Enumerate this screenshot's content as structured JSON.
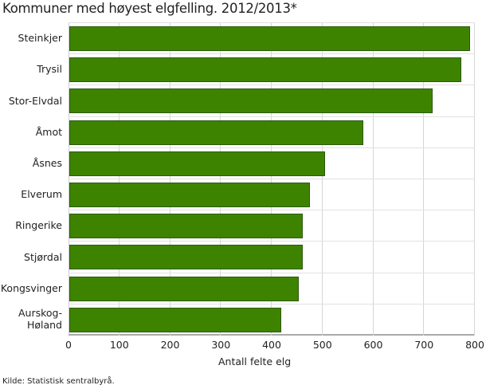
{
  "title": "Kommuner med høyest elgfelling. 2012/2013*",
  "source": "Kilde: Statistisk sentralbyrå.",
  "colors": {
    "bar": "#3d8300",
    "bar_border": "#2c5a10",
    "grid": "#d6d6d6"
  },
  "chart_data": {
    "type": "bar",
    "orientation": "horizontal",
    "title": "Kommuner med høyest elgfelling. 2012/2013*",
    "xlabel": "Antall felte elg",
    "ylabel": "",
    "categories": [
      "Steinkjer",
      "Trysil",
      "Stor-Elvdal",
      "Åmot",
      "Åsnes",
      "Elverum",
      "Ringerike",
      "Stjørdal",
      "Kongsvinger",
      "Aurskog-Høland"
    ],
    "values": [
      789,
      771,
      715,
      579,
      503,
      474,
      460,
      459,
      452,
      417
    ],
    "xlim": [
      0,
      800
    ],
    "xticks": [
      "0",
      "100",
      "200",
      "300",
      "400",
      "500",
      "600",
      "700",
      "800"
    ],
    "grid": true,
    "legend": null,
    "source": "Kilde: Statistisk sentralbyrå."
  }
}
